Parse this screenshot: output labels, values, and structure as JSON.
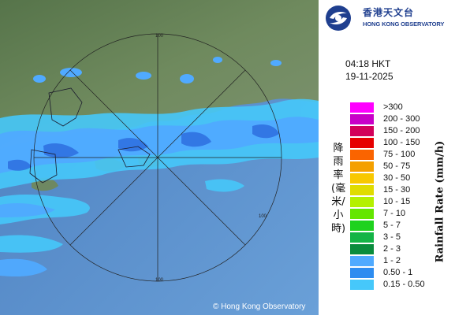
{
  "logo": {
    "name_zh": "香港天文台",
    "name_en": "HONG KONG OBSERVATORY"
  },
  "time": "04:18 HKT",
  "date": "19-11-2025",
  "legend": {
    "title_en": "Rainfall Rate (mm/h)",
    "title_zh": "降雨率(毫米/小時)",
    "bins": [
      {
        "label": ">300",
        "color": "#ff00ff"
      },
      {
        "label": "200 - 300",
        "color": "#c800c8"
      },
      {
        "label": "150 - 200",
        "color": "#d2005a"
      },
      {
        "label": "100 - 150",
        "color": "#e60000"
      },
      {
        "label": "75 - 100",
        "color": "#fa6400"
      },
      {
        "label": "50 - 75",
        "color": "#f4a000"
      },
      {
        "label": "30 - 50",
        "color": "#f8c800"
      },
      {
        "label": "15 - 30",
        "color": "#e0dc00"
      },
      {
        "label": "10 - 15",
        "color": "#b4f000"
      },
      {
        "label": "7 - 10",
        "color": "#64e600"
      },
      {
        "label": "5 - 7",
        "color": "#1ed21e"
      },
      {
        "label": "3 - 5",
        "color": "#14b446"
      },
      {
        "label": "2 - 3",
        "color": "#0a8c3c"
      },
      {
        "label": "1 - 2",
        "color": "#50aaff"
      },
      {
        "label": "0.50 - 1",
        "color": "#2d8cf0"
      },
      {
        "label": "0.15 - 0.50",
        "color": "#46c8fa"
      }
    ]
  },
  "range_rings": [
    "100",
    "100",
    "100"
  ],
  "copyright": "© Hong Kong Observatory",
  "colors": {
    "sea": "#4f85c6",
    "land": "#5f7a52",
    "rain_light": "#46c8fa",
    "rain_medium": "#50aaff",
    "rain_heavy": "#2d6fe0"
  }
}
